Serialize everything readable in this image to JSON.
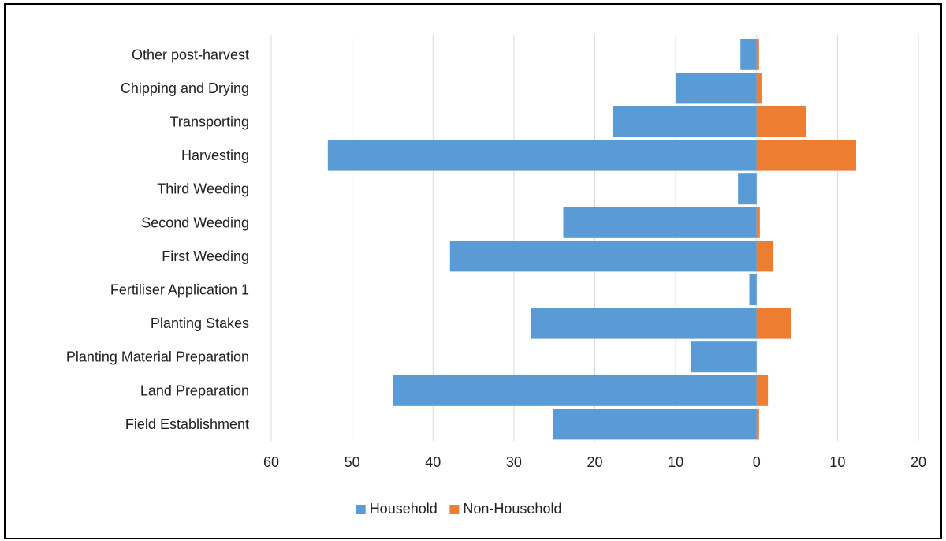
{
  "chart_data": {
    "type": "bar",
    "orientation": "horizontal",
    "stacked_diverging": true,
    "categories": [
      "Other post-harvest",
      "Chipping and Drying",
      "Transporting",
      "Harvesting",
      "Third Weeding",
      "Second Weeding",
      "First Weeding",
      "Fertiliser Application 1",
      "Planting Stakes",
      "Planting Material Preparation",
      "Land Preparation",
      "Field Establishment"
    ],
    "series": [
      {
        "name": "Household",
        "color": "#5B9BD5",
        "values": [
          -2,
          -10,
          -17.8,
          -53,
          -2.3,
          -23.9,
          -37.9,
          -0.9,
          -27.9,
          -8.1,
          -44.9,
          -25.2
        ]
      },
      {
        "name": "Non-Household",
        "color": "#ED7D31",
        "values": [
          0.3,
          0.6,
          6.1,
          12.3,
          0,
          0.4,
          2,
          0,
          4.3,
          0,
          1.4,
          0.3
        ]
      }
    ],
    "xlim": [
      -60,
      20
    ],
    "xticks": [
      -60,
      -50,
      -40,
      -30,
      -20,
      -10,
      0,
      10,
      20
    ],
    "xtick_labels": [
      "60",
      "50",
      "40",
      "30",
      "20",
      "10",
      "0",
      "10",
      "20"
    ],
    "grid": "vertical",
    "legend_position": "bottom",
    "title": "",
    "xlabel": "",
    "ylabel": ""
  }
}
